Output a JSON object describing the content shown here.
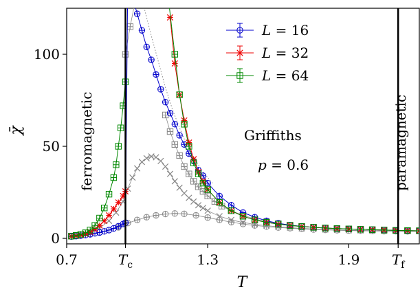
{
  "chart_data": {
    "type": "line",
    "title": "",
    "xlabel": "T",
    "ylabel": "χ̄",
    "xlim": [
      0.7,
      2.2
    ],
    "ylim": [
      -3,
      125
    ],
    "xticks": [
      {
        "value": 0.7,
        "label": "0.7"
      },
      {
        "value": 0.95,
        "label": "Tc"
      },
      {
        "value": 1.3,
        "label": "1.3"
      },
      {
        "value": 1.9,
        "label": "1.9"
      },
      {
        "value": 2.11,
        "label": "Tf"
      }
    ],
    "yticks": [
      {
        "value": 0,
        "label": "0"
      },
      {
        "value": 50,
        "label": "50"
      },
      {
        "value": 100,
        "label": "100"
      }
    ],
    "vlines": [
      {
        "x": 0.95,
        "name": "Tc"
      },
      {
        "x": 2.11,
        "name": "Tf"
      }
    ],
    "annotations": {
      "left_region": "ferromagnetic",
      "right_region": "paramagnetic",
      "griffiths": "Griffiths",
      "p_value": "p = 0.6"
    },
    "legend": {
      "position": "top-right"
    },
    "series": [
      {
        "name": "L = 16",
        "color": "#0000cc",
        "marker": "circle-plus",
        "x": [
          0.72,
          0.74,
          0.76,
          0.78,
          0.8,
          0.82,
          0.84,
          0.86,
          0.88,
          0.9,
          0.92,
          0.94,
          0.95,
          0.96,
          0.98,
          1.0,
          1.02,
          1.04,
          1.06,
          1.08,
          1.1,
          1.12,
          1.14,
          1.16,
          1.18,
          1.2,
          1.22,
          1.24,
          1.26,
          1.28,
          1.3,
          1.35,
          1.4,
          1.45,
          1.5,
          1.55,
          1.6,
          1.65,
          1.7,
          1.75,
          1.8,
          1.85,
          1.9,
          1.95,
          2.0,
          2.05,
          2.1,
          2.15,
          2.2
        ],
        "y": [
          1.0,
          1.2,
          1.5,
          1.8,
          2.2,
          2.7,
          3.2,
          3.8,
          4.5,
          5.4,
          6.6,
          7.8,
          8.5,
          140,
          131,
          122,
          113,
          104,
          97,
          89,
          81,
          74,
          68,
          62,
          56,
          51,
          46,
          42,
          37,
          34,
          30,
          23,
          18,
          14,
          11.5,
          9.5,
          8.2,
          7.2,
          6.5,
          6.0,
          5.6,
          5.3,
          5.1,
          4.9,
          4.7,
          4.5,
          4.3,
          4.2,
          4.1
        ]
      },
      {
        "name": "L = 32",
        "color": "#ee0000",
        "marker": "asterisk",
        "x": [
          0.72,
          0.74,
          0.76,
          0.78,
          0.8,
          0.82,
          0.84,
          0.86,
          0.88,
          0.9,
          0.92,
          0.94,
          0.95,
          1.14,
          1.16,
          1.18,
          1.2,
          1.22,
          1.24,
          1.26,
          1.28,
          1.3,
          1.35,
          1.4,
          1.45,
          1.5,
          1.55,
          1.6,
          1.65,
          1.7,
          1.75,
          1.8,
          1.85,
          1.9,
          1.95,
          2.0,
          2.05,
          2.1,
          2.15,
          2.2
        ],
        "y": [
          1.1,
          1.4,
          1.8,
          2.5,
          3.5,
          5.0,
          7.0,
          9.5,
          12.5,
          16,
          19.5,
          23,
          25.5,
          120,
          95,
          78,
          64,
          52,
          43,
          36,
          31,
          26.5,
          19.5,
          15,
          12,
          10,
          8.7,
          7.7,
          7.0,
          6.4,
          6.0,
          5.6,
          5.3,
          5.1,
          4.9,
          4.7,
          4.5,
          4.3,
          4.2,
          4.1
        ]
      },
      {
        "name": "L = 64",
        "color": "#008800",
        "marker": "square-plus",
        "x": [
          0.72,
          0.74,
          0.76,
          0.78,
          0.8,
          0.82,
          0.84,
          0.86,
          0.88,
          0.9,
          0.91,
          0.92,
          0.93,
          0.94,
          0.95,
          1.13,
          1.16,
          1.18,
          1.2,
          1.22,
          1.24,
          1.26,
          1.28,
          1.3,
          1.35,
          1.4,
          1.45,
          1.5,
          1.55,
          1.6,
          1.65,
          1.7,
          1.75,
          1.8,
          1.85,
          1.9,
          1.95,
          2.0,
          2.05,
          2.1,
          2.15,
          2.2
        ],
        "y": [
          1.2,
          1.6,
          2.2,
          3.0,
          4.5,
          7.0,
          11,
          16.5,
          24,
          33,
          40,
          50,
          60,
          72,
          85,
          133,
          100,
          78,
          62,
          50,
          41,
          35,
          30,
          26.5,
          19.5,
          15,
          12,
          10,
          8.7,
          7.7,
          7.0,
          6.4,
          6.0,
          5.6,
          5.3,
          5.1,
          4.9,
          4.7,
          4.5,
          4.3,
          4.2,
          4.1
        ]
      },
      {
        "name": "",
        "color": "#888888",
        "marker": "circle-plus-gray",
        "x": [
          0.72,
          0.76,
          0.8,
          0.84,
          0.88,
          0.92,
          0.96,
          1.0,
          1.04,
          1.08,
          1.12,
          1.16,
          1.2,
          1.25,
          1.3,
          1.35,
          1.4,
          1.45,
          1.5,
          1.55,
          1.6,
          1.65,
          1.7,
          1.75,
          1.8,
          1.85,
          1.9,
          1.95,
          2.0,
          2.05,
          2.1,
          2.15,
          2.2
        ],
        "y": [
          1.0,
          1.5,
          2.2,
          3.2,
          4.5,
          6.0,
          8.3,
          10,
          11.5,
          12.5,
          13.2,
          13.5,
          13.3,
          12.5,
          11.3,
          10,
          8.8,
          7.8,
          7.0,
          6.4,
          5.9,
          5.5,
          5.1,
          4.8,
          4.6,
          4.4,
          4.2,
          4.1,
          4.0,
          3.9,
          3.9,
          3.8,
          3.8
        ]
      },
      {
        "name": "",
        "color": "#888888",
        "marker": "x",
        "x": [
          0.72,
          0.76,
          0.8,
          0.84,
          0.88,
          0.91,
          0.94,
          0.96,
          0.98,
          1.0,
          1.02,
          1.04,
          1.06,
          1.08,
          1.1,
          1.12,
          1.14,
          1.16,
          1.18,
          1.2,
          1.22,
          1.24,
          1.26,
          1.28,
          1.3,
          1.35,
          1.4,
          1.45,
          1.5,
          1.55,
          1.6,
          1.65,
          1.7,
          1.75,
          1.8,
          1.85,
          1.9,
          1.95,
          2.0,
          2.05,
          2.1,
          2.15,
          2.2
        ],
        "y": [
          1.1,
          1.8,
          3.0,
          5.5,
          9.5,
          14,
          20,
          27,
          33,
          38,
          41.5,
          43.5,
          44.5,
          44,
          42,
          39,
          35,
          31,
          27.5,
          24.5,
          22,
          20,
          18,
          16.5,
          15,
          12,
          10,
          8.6,
          7.6,
          6.9,
          6.3,
          5.8,
          5.4,
          5.1,
          4.8,
          4.6,
          4.4,
          4.3,
          4.2,
          4.1,
          4.0,
          3.9,
          3.9
        ]
      },
      {
        "name": "",
        "color": "#888888",
        "marker": "square-plus-gray",
        "x": [
          0.95,
          0.97,
          0.99,
          1.12,
          1.14,
          1.16,
          1.18,
          1.2,
          1.22,
          1.24,
          1.26,
          1.28,
          1.3,
          1.33,
          1.36,
          1.4,
          1.45,
          1.5,
          1.55,
          1.6,
          1.65,
          1.7,
          1.75,
          1.8,
          1.85,
          1.9,
          1.95,
          2.0,
          2.05,
          2.1,
          2.15,
          2.2
        ],
        "y": [
          100,
          115,
          128,
          67,
          58,
          51,
          45,
          39,
          35,
          31,
          28,
          25.5,
          23,
          20,
          17.5,
          15,
          12.5,
          10.5,
          9.0,
          8.0,
          7.2,
          6.5,
          6.0,
          5.6,
          5.3,
          5.1,
          4.9,
          4.7,
          4.5,
          4.3,
          4.2,
          4.1
        ]
      }
    ],
    "guide_curve": {
      "style": "dotted",
      "color": "#888888",
      "x": [
        1.0,
        1.03,
        1.06,
        1.09,
        1.12,
        1.15,
        1.18,
        1.21,
        1.24,
        1.28,
        1.32
      ],
      "y": [
        140,
        125,
        110,
        96,
        82,
        70,
        60,
        51,
        44,
        36,
        30
      ]
    }
  }
}
